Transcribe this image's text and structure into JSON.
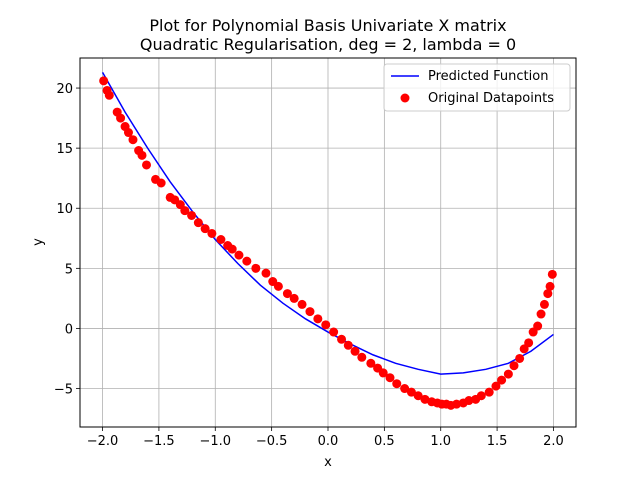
{
  "chart_data": {
    "type": "line",
    "title": "Plot for Polynomial Basis Univariate X matrix",
    "subtitle": "Quadratic Regularisation, deg = 2, lambda = 0",
    "xlabel": "x",
    "ylabel": "y",
    "xlim": [
      -2.2,
      2.2
    ],
    "ylim": [
      -8.2,
      22.5
    ],
    "xticks": [
      -2.0,
      -1.5,
      -1.0,
      -0.5,
      0.0,
      0.5,
      1.0,
      1.5,
      2.0
    ],
    "xtick_labels": [
      "−2.0",
      "−1.5",
      "−1.0",
      "−0.5",
      "0.0",
      "0.5",
      "1.0",
      "1.5",
      "2.0"
    ],
    "yticks": [
      -5,
      0,
      5,
      10,
      15,
      20
    ],
    "ytick_labels": [
      "−5",
      "0",
      "5",
      "10",
      "15",
      "20"
    ],
    "grid": true,
    "legend_position": "top-right",
    "series": [
      {
        "name": "Predicted Function",
        "kind": "line",
        "color": "#0000ff",
        "x": [
          -2.0,
          -1.8,
          -1.6,
          -1.4,
          -1.2,
          -1.0,
          -0.8,
          -0.6,
          -0.4,
          -0.2,
          0.0,
          0.2,
          0.4,
          0.6,
          0.8,
          1.0,
          1.2,
          1.4,
          1.6,
          1.8,
          2.0
        ],
        "y": [
          21.3,
          18.0,
          15.0,
          12.2,
          9.7,
          7.4,
          5.4,
          3.6,
          2.1,
          0.8,
          -0.3,
          -1.3,
          -2.2,
          -2.9,
          -3.4,
          -3.8,
          -3.7,
          -3.4,
          -2.9,
          -1.9,
          -0.5
        ]
      },
      {
        "name": "Original Datapoints",
        "kind": "scatter",
        "color": "#ff0000",
        "x": [
          -1.99,
          -1.96,
          -1.94,
          -1.87,
          -1.84,
          -1.8,
          -1.77,
          -1.73,
          -1.68,
          -1.65,
          -1.61,
          -1.53,
          -1.48,
          -1.4,
          -1.36,
          -1.31,
          -1.27,
          -1.21,
          -1.15,
          -1.09,
          -1.03,
          -0.95,
          -0.89,
          -0.85,
          -0.79,
          -0.72,
          -0.64,
          -0.55,
          -0.49,
          -0.44,
          -0.36,
          -0.3,
          -0.23,
          -0.16,
          -0.09,
          -0.02,
          0.05,
          0.12,
          0.18,
          0.24,
          0.3,
          0.38,
          0.44,
          0.49,
          0.55,
          0.61,
          0.68,
          0.74,
          0.8,
          0.86,
          0.92,
          0.97,
          1.01,
          1.05,
          1.09,
          1.14,
          1.2,
          1.25,
          1.31,
          1.36,
          1.43,
          1.49,
          1.54,
          1.6,
          1.65,
          1.7,
          1.74,
          1.78,
          1.82,
          1.86,
          1.89,
          1.92,
          1.95,
          1.97,
          1.99
        ],
        "y": [
          20.6,
          19.8,
          19.4,
          18.0,
          17.5,
          16.8,
          16.3,
          15.7,
          14.8,
          14.4,
          13.6,
          12.4,
          12.1,
          10.9,
          10.7,
          10.3,
          9.8,
          9.4,
          8.8,
          8.3,
          7.9,
          7.4,
          6.9,
          6.6,
          6.1,
          5.6,
          5.0,
          4.6,
          3.9,
          3.5,
          2.9,
          2.5,
          2.0,
          1.4,
          0.8,
          0.3,
          -0.3,
          -0.9,
          -1.4,
          -1.9,
          -2.4,
          -2.9,
          -3.3,
          -3.7,
          -4.1,
          -4.6,
          -5.0,
          -5.3,
          -5.6,
          -5.9,
          -6.1,
          -6.2,
          -6.3,
          -6.3,
          -6.4,
          -6.3,
          -6.2,
          -6.0,
          -5.9,
          -5.6,
          -5.3,
          -4.8,
          -4.3,
          -3.8,
          -3.1,
          -2.5,
          -1.7,
          -1.2,
          -0.3,
          0.2,
          1.2,
          2.0,
          2.9,
          3.5,
          4.5
        ]
      }
    ]
  }
}
